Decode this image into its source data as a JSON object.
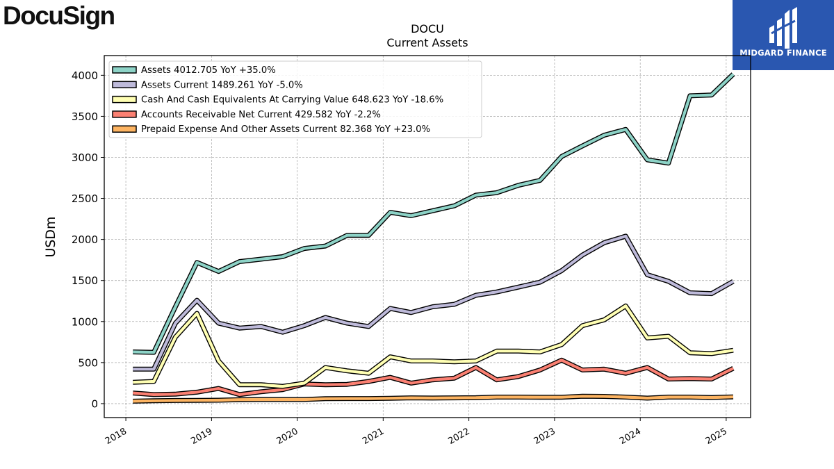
{
  "branding": {
    "company_logo_text": "DocuSign",
    "publisher_logo_text": "MIDGARD FINANCE"
  },
  "chart_data": {
    "type": "line",
    "title": "DOCU",
    "subtitle": "Current  Assets",
    "ylabel": "USDm",
    "xlabel": "",
    "xlim": [
      "2017-10-01",
      "2025-04-15"
    ],
    "ylim": [
      -170,
      4240
    ],
    "yticks": [
      0,
      500,
      1000,
      1500,
      2000,
      2500,
      3000,
      3500,
      4000
    ],
    "xticks": [
      "2018",
      "2019",
      "2020",
      "2021",
      "2022",
      "2023",
      "2024",
      "2025"
    ],
    "grid": true,
    "legend_position": "top-left",
    "x": [
      "2018-01-31",
      "2018-04-30",
      "2018-07-31",
      "2018-10-31",
      "2019-01-31",
      "2019-04-30",
      "2019-07-31",
      "2019-10-31",
      "2020-01-31",
      "2020-04-30",
      "2020-07-31",
      "2020-10-31",
      "2021-01-31",
      "2021-04-30",
      "2021-07-31",
      "2021-10-31",
      "2022-01-31",
      "2022-04-30",
      "2022-07-31",
      "2022-10-31",
      "2023-01-31",
      "2023-04-30",
      "2023-07-31",
      "2023-10-31",
      "2024-01-31",
      "2024-04-30",
      "2024-07-31",
      "2024-10-31",
      "2025-01-31"
    ],
    "series": [
      {
        "name": "Assets",
        "legend": "Assets  4012.705 YoY +35.0%",
        "color": "#8dd3c7",
        "values": [
          630,
          625,
          1180,
          1720,
          1610,
          1730,
          1760,
          1790,
          1890,
          1920,
          2050,
          2050,
          2330,
          2290,
          2350,
          2410,
          2540,
          2570,
          2660,
          2720,
          3010,
          3140,
          3270,
          3340,
          2970,
          2930,
          3750,
          3760,
          4013
        ]
      },
      {
        "name": "Assets Current",
        "legend": "Assets Current  1489.261 YoY -5.0%",
        "color": "#bebada",
        "values": [
          420,
          420,
          980,
          1260,
          980,
          920,
          940,
          870,
          950,
          1050,
          980,
          940,
          1160,
          1110,
          1180,
          1210,
          1320,
          1360,
          1420,
          1480,
          1620,
          1810,
          1960,
          2040,
          1570,
          1490,
          1350,
          1340,
          1489
        ]
      },
      {
        "name": "Cash And Cash Equivalents At Carrying Value",
        "legend": "Cash And Cash Equivalents At Carrying Value  648.623 YoY -18.6%",
        "color": "#ffffb3",
        "values": [
          260,
          270,
          810,
          1100,
          520,
          230,
          230,
          210,
          250,
          440,
          400,
          370,
          570,
          520,
          520,
          510,
          520,
          640,
          640,
          630,
          720,
          950,
          1020,
          1190,
          800,
          820,
          620,
          610,
          649
        ]
      },
      {
        "name": "Accounts Receivable Net Current",
        "legend": "Accounts Receivable Net Current  429.582 YoY -2.2%",
        "color": "#fb8072",
        "values": [
          130,
          110,
          115,
          140,
          185,
          110,
          145,
          170,
          240,
          230,
          235,
          270,
          320,
          250,
          290,
          310,
          440,
          290,
          330,
          410,
          530,
          410,
          420,
          370,
          440,
          300,
          305,
          300,
          430
        ]
      },
      {
        "name": "Prepaid Expense And Other Assets Current",
        "legend": "Prepaid Expense And Other Assets Current  82.368 YoY +23.0%",
        "color": "#fdb462",
        "values": [
          30,
          35,
          38,
          40,
          42,
          48,
          50,
          50,
          50,
          60,
          62,
          62,
          65,
          70,
          68,
          70,
          72,
          80,
          80,
          78,
          78,
          90,
          88,
          80,
          67,
          80,
          80,
          75,
          82
        ]
      }
    ]
  }
}
